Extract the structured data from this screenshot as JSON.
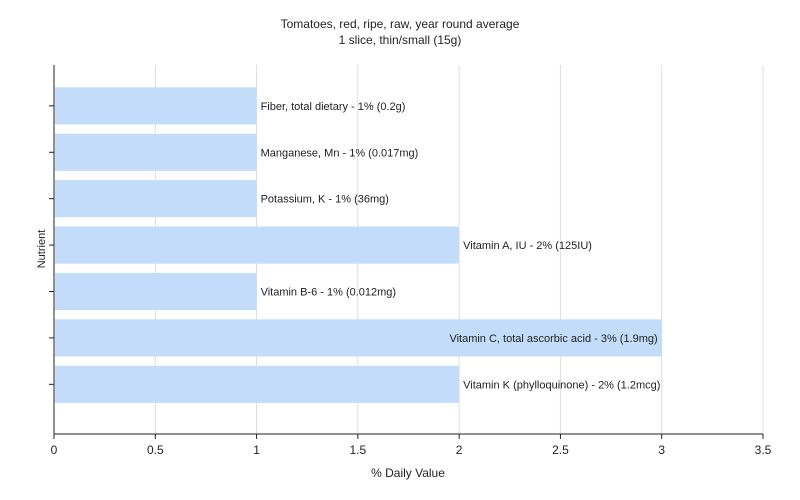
{
  "chart_data": {
    "type": "bar",
    "orientation": "horizontal",
    "title": "Tomatoes, red, ripe, raw, year round average",
    "subtitle": "1 slice, thin/small (15g)",
    "xlabel": "% Daily Value",
    "ylabel": "Nutrient",
    "xlim": [
      0,
      3.5
    ],
    "xticks": [
      "0",
      "0.5",
      "1",
      "1.5",
      "2",
      "2.5",
      "3",
      "3.5"
    ],
    "grid": true,
    "categories": [
      "Fiber, total dietary",
      "Manganese, Mn",
      "Potassium, K",
      "Vitamin A, IU",
      "Vitamin B-6",
      "Vitamin C, total ascorbic acid",
      "Vitamin K (phylloquinone)"
    ],
    "values": [
      1,
      1,
      1,
      2,
      1,
      3,
      2
    ],
    "labels": [
      "Fiber, total dietary - 1% (0.2g)",
      "Manganese, Mn - 1% (0.017mg)",
      "Potassium, K - 1% (36mg)",
      "Vitamin A, IU - 2% (125IU)",
      "Vitamin B-6 - 1% (0.012mg)",
      "Vitamin C, total ascorbic acid - 3% (1.9mg)",
      "Vitamin K (phylloquinone) - 2% (1.2mcg)"
    ],
    "colors": {
      "bar": "#c2dcfa",
      "grid": "#dddddd",
      "axis": "#222222",
      "plot_bg": "#ffffff"
    }
  }
}
